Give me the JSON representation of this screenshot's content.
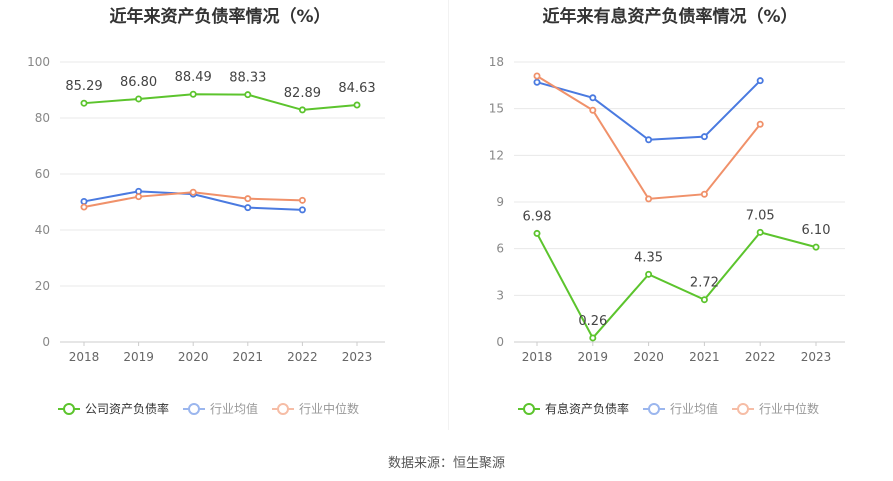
{
  "charts": [
    {
      "id": "left",
      "title": "近年来资产负债率情况（%）",
      "legend": [
        "公司资产负债率",
        "行业均值",
        "行业中位数"
      ]
    },
    {
      "id": "right",
      "title": "近年来有息资产负债率情况（%）",
      "legend": [
        "有息资产负债率",
        "行业均值",
        "行业中位数"
      ]
    }
  ],
  "source": "数据来源：恒生聚源",
  "colors": {
    "company": "#5cc42d",
    "avg": "#4a7ae0",
    "median": "#f0916a"
  },
  "chart_data": [
    {
      "type": "line",
      "title": "近年来资产负债率情况（%）",
      "x": [
        "2018",
        "2019",
        "2020",
        "2021",
        "2022",
        "2023"
      ],
      "ylim": [
        0,
        100
      ],
      "yticks": [
        0,
        20,
        40,
        60,
        80,
        100
      ],
      "grid": true,
      "legend_position": "bottom",
      "series": [
        {
          "name": "公司资产负债率",
          "values": [
            85.29,
            86.8,
            88.49,
            88.33,
            82.89,
            84.63
          ],
          "labels": [
            "85.29",
            "86.80",
            "88.49",
            "88.33",
            "82.89",
            "84.63"
          ]
        },
        {
          "name": "行业均值",
          "values": [
            50.2,
            53.8,
            52.8,
            48.0,
            47.2,
            null
          ]
        },
        {
          "name": "行业中位数",
          "values": [
            48.2,
            51.9,
            53.5,
            51.2,
            50.6,
            null
          ]
        }
      ]
    },
    {
      "type": "line",
      "title": "近年来有息资产负债率情况（%）",
      "x": [
        "2018",
        "2019",
        "2020",
        "2021",
        "2022",
        "2023"
      ],
      "ylim": [
        0,
        18
      ],
      "yticks": [
        0,
        3,
        6,
        9,
        12,
        15,
        18
      ],
      "grid": true,
      "legend_position": "bottom",
      "series": [
        {
          "name": "有息资产负债率",
          "values": [
            6.98,
            0.26,
            4.35,
            2.72,
            7.05,
            6.1
          ],
          "labels": [
            "6.98",
            "0.26",
            "4.35",
            "2.72",
            "7.05",
            "6.10"
          ]
        },
        {
          "name": "行业均值",
          "values": [
            16.7,
            15.7,
            13.0,
            13.2,
            16.8,
            null
          ]
        },
        {
          "name": "行业中位数",
          "values": [
            17.1,
            14.9,
            9.2,
            9.5,
            14.0,
            null
          ]
        }
      ]
    }
  ]
}
